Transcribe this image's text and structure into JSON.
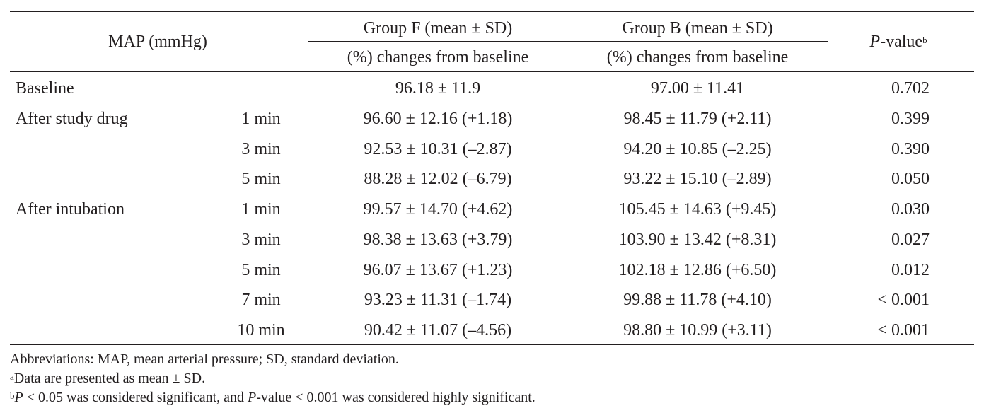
{
  "header": {
    "col_label": "MAP (mmHg)",
    "group_f": "Group F (mean ± SD)",
    "group_b": "Group B (mean ± SD)",
    "changes_f": "(%) changes from baseline",
    "changes_b": "(%) changes from baseline",
    "pvalue_italic": "P",
    "pvalue_rest": "-value",
    "pvalue_sup": "b"
  },
  "rows": [
    {
      "label": "Baseline",
      "time": "",
      "f": "96.18 ± 11.9",
      "b": "97.00 ± 11.41",
      "p": "0.702"
    },
    {
      "label": "After study drug",
      "time": "1 min",
      "f": "96.60 ± 12.16 (+1.18)",
      "b": "98.45 ± 11.79 (+2.11)",
      "p": "0.399"
    },
    {
      "label": "",
      "time": "3 min",
      "f": "92.53 ± 10.31 (–2.87)",
      "b": "94.20 ± 10.85 (–2.25)",
      "p": "0.390"
    },
    {
      "label": "",
      "time": "5 min",
      "f": "88.28 ± 12.02 (–6.79)",
      "b": "93.22 ± 15.10 (–2.89)",
      "p": "0.050"
    },
    {
      "label": "After intubation",
      "time": "1 min",
      "f": "99.57 ± 14.70 (+4.62)",
      "b": "105.45 ± 14.63 (+9.45)",
      "p": "0.030"
    },
    {
      "label": "",
      "time": "3 min",
      "f": "98.38 ± 13.63 (+3.79)",
      "b": "103.90 ± 13.42 (+8.31)",
      "p": "0.027"
    },
    {
      "label": "",
      "time": "5 min",
      "f": "96.07 ± 13.67 (+1.23)",
      "b": "102.18 ± 12.86 (+6.50)",
      "p": "0.012"
    },
    {
      "label": "",
      "time": "7 min",
      "f": "93.23 ± 11.31 (–1.74)",
      "b": "99.88 ± 11.78 (+4.10)",
      "p": "< 0.001"
    },
    {
      "label": "",
      "time": "10 min",
      "f": "90.42 ± 11.07 (–4.56)",
      "b": "98.80 ± 10.99 (+3.11)",
      "p": "< 0.001"
    }
  ],
  "footnotes": {
    "abbrev": "Abbreviations: MAP, mean arterial pressure; SD, standard deviation.",
    "a_mark": "a",
    "a_text": "Data are presented as mean ± SD.",
    "b_mark": "b",
    "b_p": "P",
    "b_text1": " < 0.05 was considered significant, and ",
    "b_p2": "P",
    "b_text2": "-value < 0.001 was considered highly significant."
  }
}
